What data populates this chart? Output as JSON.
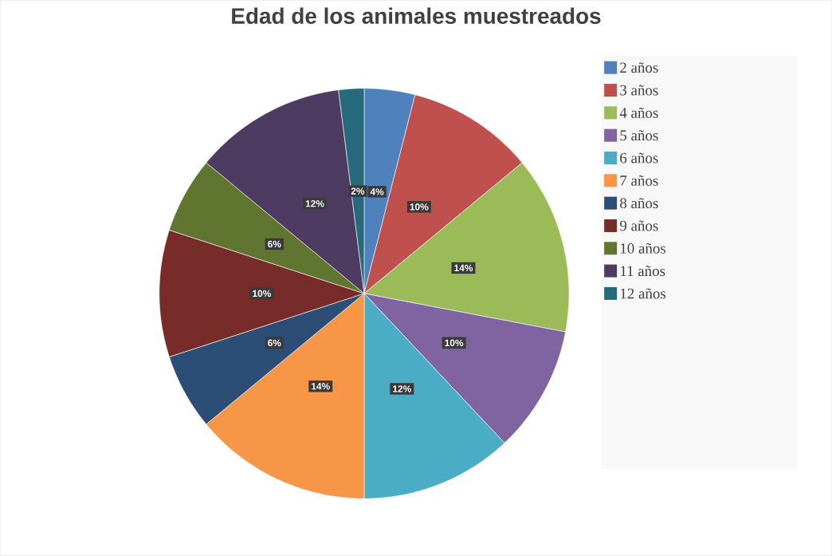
{
  "chart_data": {
    "type": "pie",
    "title": "Edad de los animales muestreados",
    "categories": [
      "2 años",
      "3 años",
      "4 años",
      "5 años",
      "6 años",
      "7 años",
      "8 años",
      "9 años",
      "10 años",
      "11 años",
      "12 años"
    ],
    "values": [
      4,
      10,
      14,
      10,
      12,
      14,
      6,
      10,
      6,
      12,
      2
    ],
    "value_labels": [
      "4%",
      "10%",
      "14%",
      "10%",
      "12%",
      "14%",
      "6%",
      "10%",
      "6%",
      "12%",
      "2%"
    ],
    "colors": [
      "#4f81bd",
      "#c0504d",
      "#9bbb59",
      "#8064a2",
      "#4bacc6",
      "#f79646",
      "#2c4d75",
      "#772c2a",
      "#5f7530",
      "#4d3b62",
      "#276a7c"
    ],
    "legend": "right"
  }
}
